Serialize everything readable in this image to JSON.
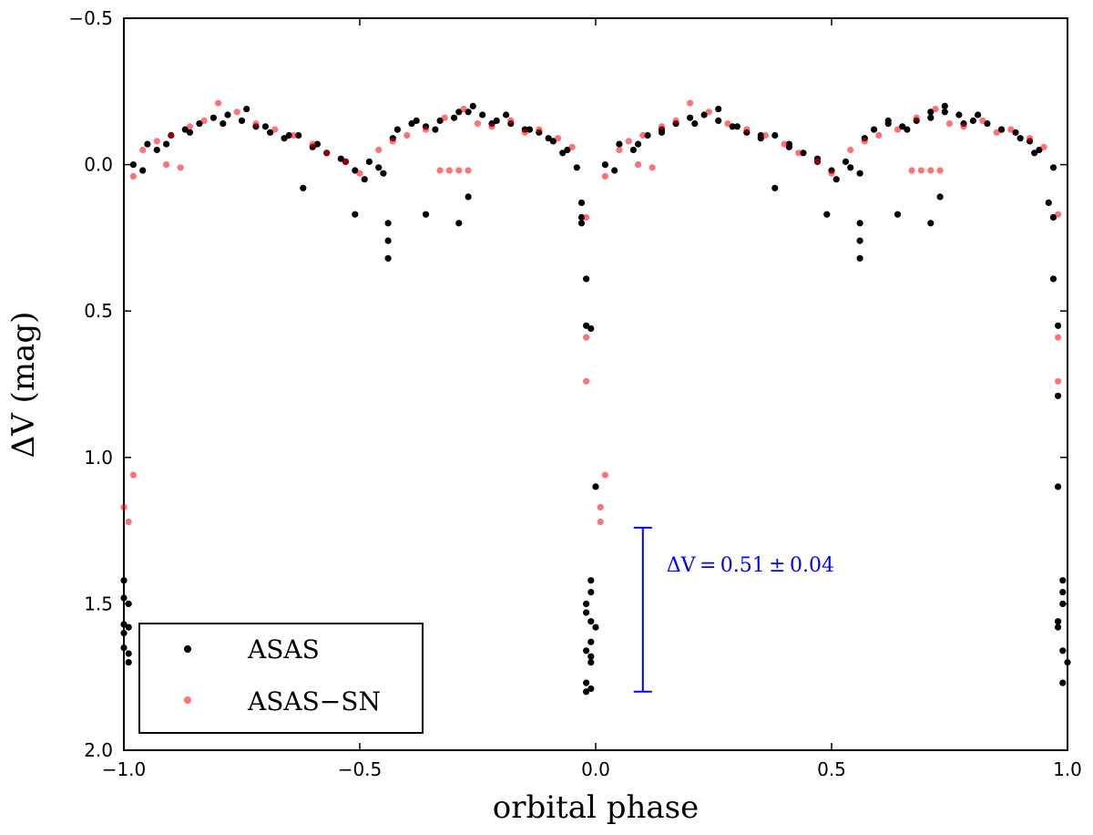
{
  "chart_data": {
    "type": "scatter",
    "title": "",
    "xlabel": "orbital phase",
    "ylabel": "ΔV (mag)",
    "xlim": [
      -1.0,
      1.0
    ],
    "ylim": [
      2.0,
      -0.5
    ],
    "y_inverted": true,
    "xticks": [
      -1.0,
      -0.5,
      0.0,
      0.5,
      1.0
    ],
    "xtick_labels": [
      "−1.0",
      "−0.5",
      "0.0",
      "0.5",
      "1.0"
    ],
    "yticks": [
      -0.5,
      0.0,
      0.5,
      1.0,
      1.5,
      2.0
    ],
    "ytick_labels": [
      "−0.5",
      "0.0",
      "0.5",
      "1.0",
      "1.5",
      "2.0"
    ],
    "grid": false,
    "legend_position": "bottom-left",
    "series": [
      {
        "name": "ASAS",
        "color": "#000000",
        "opacity": 1.0,
        "x": [
          -0.98,
          -0.95,
          -0.93,
          -0.9,
          -0.87,
          -0.84,
          -0.81,
          -0.78,
          -0.75,
          -0.72,
          -0.69,
          -0.66,
          -0.63,
          -0.6,
          -0.57,
          -0.54,
          -0.51,
          -0.48,
          -0.45,
          -0.42,
          -0.39,
          -0.36,
          -0.33,
          -0.3,
          -0.27,
          -0.24,
          -0.21,
          -0.18,
          -0.15,
          -0.12,
          -0.09,
          -0.06,
          -0.04,
          -0.96,
          -0.91,
          -0.86,
          -0.79,
          -0.74,
          -0.7,
          -0.65,
          -0.59,
          -0.53,
          -0.49,
          -0.46,
          -0.43,
          -0.38,
          -0.34,
          -0.29,
          -0.26,
          -0.22,
          -0.19,
          -0.14,
          -0.1,
          -0.07,
          -0.62,
          -0.51,
          -0.44,
          -0.44,
          -0.44,
          -0.36,
          -0.27,
          -0.29,
          -1.0,
          -1.0,
          -0.99,
          -1.0,
          -1.0,
          -0.99,
          -0.99,
          -1.0,
          -0.99,
          -0.03,
          -0.03,
          -0.03,
          -0.02,
          -0.02,
          -0.01,
          -0.01,
          -0.01,
          -0.02,
          -0.01,
          0.0,
          -0.02,
          -0.01,
          -0.02,
          -0.01,
          -0.02,
          -0.01,
          -0.01,
          -0.02,
          0.0,
          0.02,
          0.05,
          0.08,
          0.11,
          0.14,
          0.17,
          0.2,
          0.23,
          0.26,
          0.29,
          0.32,
          0.35,
          0.38,
          0.41,
          0.44,
          0.47,
          0.5,
          0.53,
          0.56,
          0.59,
          0.62,
          0.65,
          0.68,
          0.71,
          0.74,
          0.77,
          0.8,
          0.83,
          0.86,
          0.89,
          0.92,
          0.94,
          0.97,
          0.04,
          0.09,
          0.14,
          0.21,
          0.26,
          0.3,
          0.35,
          0.41,
          0.47,
          0.51,
          0.54,
          0.57,
          0.62,
          0.66,
          0.71,
          0.74,
          0.78,
          0.81,
          0.86,
          0.9,
          0.93,
          0.38,
          0.49,
          0.56,
          0.56,
          0.56,
          0.64,
          0.73,
          0.71,
          0.96,
          0.97,
          0.97,
          0.98,
          0.98,
          0.98,
          0.99,
          0.99,
          0.99,
          0.98,
          0.98,
          0.99,
          1.0,
          0.99
        ],
        "y": [
          0.0,
          -0.07,
          -0.05,
          -0.1,
          -0.12,
          -0.14,
          -0.16,
          -0.17,
          -0.15,
          -0.13,
          -0.11,
          -0.09,
          -0.1,
          -0.06,
          -0.04,
          -0.02,
          0.02,
          -0.01,
          0.03,
          -0.12,
          -0.14,
          -0.13,
          -0.15,
          -0.16,
          -0.18,
          -0.17,
          -0.15,
          -0.14,
          -0.12,
          -0.11,
          -0.08,
          -0.05,
          0.01,
          0.02,
          -0.07,
          -0.11,
          -0.14,
          -0.19,
          -0.13,
          -0.1,
          -0.07,
          -0.01,
          0.05,
          0.01,
          -0.09,
          -0.15,
          -0.12,
          -0.18,
          -0.2,
          -0.14,
          -0.17,
          -0.12,
          -0.09,
          -0.04,
          0.08,
          0.17,
          0.2,
          0.26,
          0.32,
          0.17,
          0.11,
          0.2,
          1.42,
          1.48,
          1.5,
          1.57,
          1.6,
          1.67,
          1.7,
          1.65,
          1.58,
          0.13,
          0.18,
          0.2,
          0.39,
          0.55,
          0.56,
          1.42,
          1.46,
          1.5,
          1.56,
          1.58,
          1.66,
          1.7,
          1.77,
          1.79,
          1.8,
          1.63,
          1.68,
          1.53,
          1.1,
          0.0,
          -0.07,
          -0.05,
          -0.1,
          -0.12,
          -0.14,
          -0.16,
          -0.17,
          -0.15,
          -0.13,
          -0.11,
          -0.09,
          -0.1,
          -0.06,
          -0.04,
          -0.02,
          0.02,
          -0.01,
          0.03,
          -0.12,
          -0.14,
          -0.13,
          -0.15,
          -0.16,
          -0.18,
          -0.17,
          -0.15,
          -0.14,
          -0.12,
          -0.11,
          -0.08,
          -0.05,
          0.01,
          0.02,
          -0.07,
          -0.11,
          -0.14,
          -0.19,
          -0.13,
          -0.1,
          -0.07,
          -0.01,
          0.05,
          0.01,
          -0.09,
          -0.15,
          -0.12,
          -0.18,
          -0.2,
          -0.14,
          -0.17,
          -0.12,
          -0.09,
          -0.04,
          0.08,
          0.17,
          0.2,
          0.26,
          0.32,
          0.17,
          0.11,
          0.2,
          0.13,
          0.18,
          0.39,
          0.55,
          0.79,
          1.1,
          1.42,
          1.46,
          1.5,
          1.56,
          1.58,
          1.66,
          1.7,
          1.77
        ]
      },
      {
        "name": "ASAS−SN",
        "color": "#ff0000",
        "opacity": 0.55,
        "x": [
          -0.98,
          -0.96,
          -0.93,
          -0.9,
          -0.86,
          -0.83,
          -0.8,
          -0.76,
          -0.72,
          -0.68,
          -0.64,
          -0.6,
          -0.57,
          -0.53,
          -0.5,
          -0.46,
          -0.43,
          -0.4,
          -0.36,
          -0.32,
          -0.28,
          -0.25,
          -0.22,
          -0.18,
          -0.15,
          -0.12,
          -0.08,
          -0.05,
          -0.91,
          -0.88,
          -0.33,
          -0.31,
          -0.29,
          -0.27,
          -0.02,
          -0.02,
          -0.02,
          -1.0,
          -0.99,
          -0.98,
          0.02,
          0.05,
          0.07,
          0.1,
          0.14,
          0.17,
          0.2,
          0.24,
          0.28,
          0.32,
          0.36,
          0.4,
          0.43,
          0.47,
          0.5,
          0.54,
          0.57,
          0.6,
          0.64,
          0.68,
          0.72,
          0.75,
          0.78,
          0.82,
          0.85,
          0.88,
          0.92,
          0.95,
          0.09,
          0.12,
          0.67,
          0.69,
          0.71,
          0.73,
          0.98,
          0.98,
          0.98,
          0.01,
          0.01,
          0.02
        ],
        "y": [
          0.04,
          -0.05,
          -0.08,
          -0.1,
          -0.13,
          -0.15,
          -0.21,
          -0.18,
          -0.14,
          -0.12,
          -0.1,
          -0.07,
          -0.04,
          -0.01,
          0.03,
          -0.05,
          -0.08,
          -0.1,
          -0.12,
          -0.16,
          -0.19,
          -0.14,
          -0.13,
          -0.15,
          -0.11,
          -0.12,
          -0.09,
          -0.06,
          0.0,
          0.01,
          0.02,
          0.02,
          0.02,
          0.02,
          0.59,
          0.74,
          0.18,
          1.17,
          1.22,
          1.06,
          0.04,
          -0.05,
          -0.08,
          -0.1,
          -0.13,
          -0.15,
          -0.21,
          -0.18,
          -0.14,
          -0.12,
          -0.1,
          -0.07,
          -0.04,
          -0.01,
          0.03,
          -0.05,
          -0.08,
          -0.1,
          -0.12,
          -0.16,
          -0.19,
          -0.14,
          -0.13,
          -0.15,
          -0.11,
          -0.12,
          -0.09,
          -0.06,
          0.0,
          0.01,
          0.02,
          0.02,
          0.02,
          0.02,
          0.17,
          0.59,
          0.74,
          1.17,
          1.22,
          1.06
        ]
      }
    ],
    "annotations": [
      {
        "type": "errorbar",
        "x": 0.1,
        "y_low": 1.8,
        "y_high": 1.24,
        "color": "#0000ff",
        "label": "ΔV = 0.51 ± 0.04"
      }
    ]
  }
}
